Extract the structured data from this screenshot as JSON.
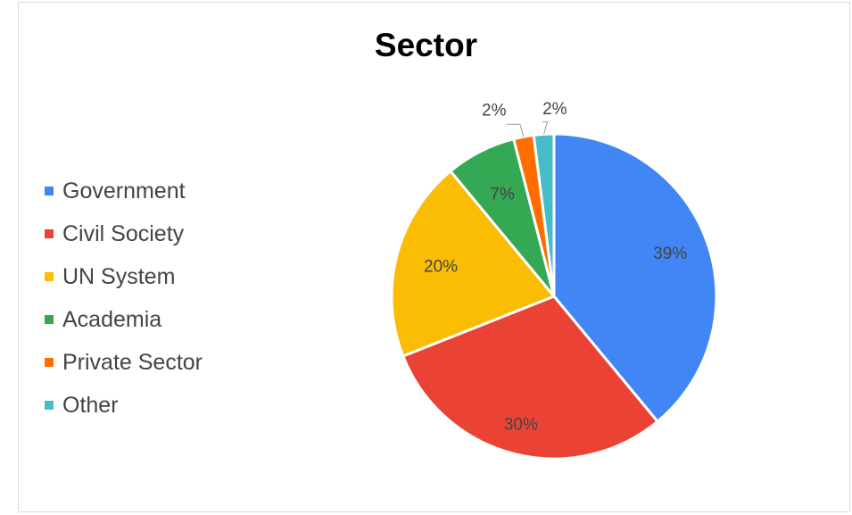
{
  "chart_data": {
    "type": "pie",
    "title": "Sector",
    "legend_position": "left",
    "categories": [
      "Government",
      "Civil Society",
      "UN System",
      "Academia",
      "Private Sector",
      "Other"
    ],
    "values": [
      39,
      30,
      20,
      7,
      2,
      2
    ],
    "labels": [
      "39%",
      "30%",
      "20%",
      "7%",
      "2%",
      "2%"
    ],
    "colors": [
      "#4285F4",
      "#EA4335",
      "#FBBC04",
      "#34A853",
      "#FF6D01",
      "#46BDC6"
    ]
  }
}
